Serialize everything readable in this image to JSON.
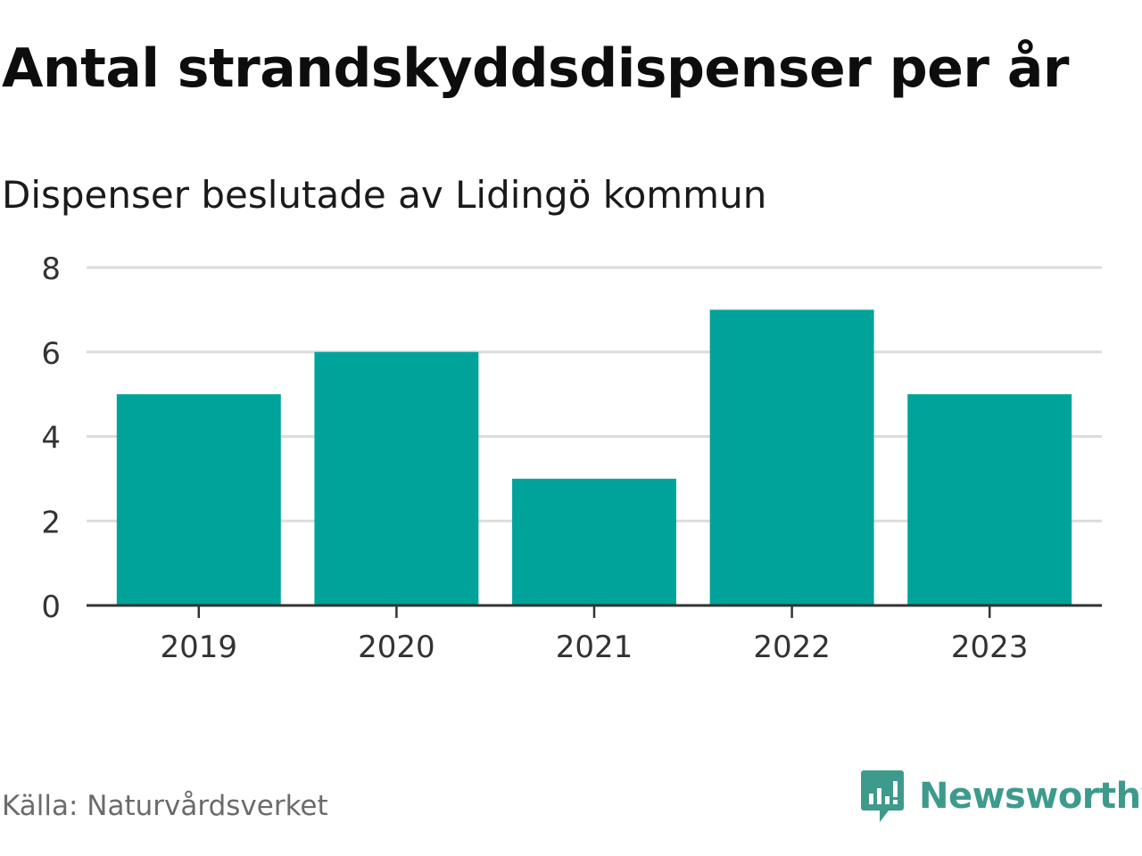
{
  "chart_data": {
    "type": "bar",
    "title": "Antal strandskyddsdispenser per år",
    "subtitle": "Dispenser beslutade av Lidingö kommun",
    "categories": [
      "2019",
      "2020",
      "2021",
      "2022",
      "2023"
    ],
    "values": [
      5,
      6,
      3,
      7,
      5
    ],
    "xlabel": "",
    "ylabel": "",
    "ylim": [
      0,
      8
    ],
    "yticks": [
      "0",
      "2",
      "4",
      "6",
      "8"
    ],
    "grid": true,
    "bar_color": "#00a39a"
  },
  "footer": {
    "source": "Källa: Naturvårdsverket",
    "brand": "Newsworthy",
    "brand_icon": "newsworthy-logo-icon",
    "brand_color": "#3e9a8c"
  }
}
